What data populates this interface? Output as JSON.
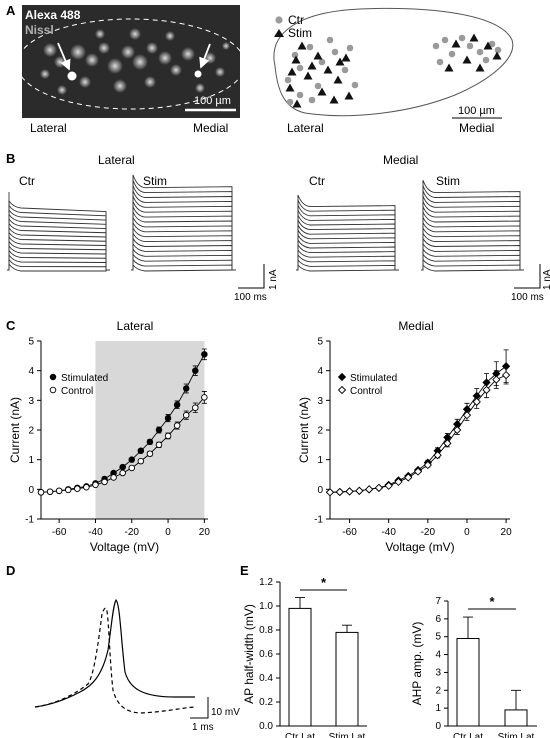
{
  "panels": {
    "A": {
      "label": "A",
      "micrograph": {
        "stain1": "Alexa 488",
        "stain2": "Nissl",
        "scale": "100 µm",
        "lateral": "Lateral",
        "medial": "Medial"
      },
      "map": {
        "legend_ctr": "Ctr",
        "legend_stim": "Stim",
        "scale": "100 µm",
        "lateral": "Lateral",
        "medial": "Medial",
        "colors": {
          "ctr": "#9a9a9a",
          "stim": "#111111"
        }
      }
    },
    "B": {
      "label": "B",
      "lateral_title": "Lateral",
      "medial_title": "Medial",
      "lateral_ctr": "Ctr",
      "lateral_stim": "Stim",
      "medial_ctr": "Ctr",
      "medial_stim": "Stim",
      "scale_current": "1 nA",
      "scale_time": "100 ms"
    },
    "C": {
      "label": "C"
    },
    "D": {
      "label": "D",
      "scale_voltage": "10 mV",
      "scale_time": "1 ms"
    },
    "E": {
      "label": "E"
    }
  },
  "chart_data": [
    {
      "id": "C-lateral",
      "type": "line",
      "title": "Lateral",
      "xlabel": "Voltage (mV)",
      "ylabel": "Current (nA)",
      "xlim": [
        -70,
        22
      ],
      "ylim": [
        -1,
        5
      ],
      "xticks": [
        -60,
        -40,
        -20,
        0,
        20
      ],
      "yticks": [
        -1,
        0,
        1,
        2,
        3,
        4,
        5
      ],
      "shaded_region": [
        -40,
        20
      ],
      "x": [
        -70,
        -65,
        -60,
        -55,
        -50,
        -45,
        -40,
        -35,
        -30,
        -25,
        -20,
        -15,
        -10,
        -5,
        0,
        5,
        10,
        15,
        20
      ],
      "series": [
        {
          "name": "Stimulated",
          "marker": "filled-circle",
          "values": [
            -0.1,
            -0.08,
            -0.05,
            0.0,
            0.05,
            0.1,
            0.2,
            0.35,
            0.55,
            0.75,
            1.0,
            1.3,
            1.6,
            2.0,
            2.4,
            2.85,
            3.4,
            4.0,
            4.55
          ],
          "errors": [
            0,
            0,
            0,
            0,
            0,
            0,
            0,
            0,
            0,
            0,
            0.05,
            0.06,
            0.08,
            0.1,
            0.12,
            0.13,
            0.15,
            0.16,
            0.18
          ]
        },
        {
          "name": "Control",
          "marker": "open-circle",
          "values": [
            -0.1,
            -0.08,
            -0.05,
            -0.02,
            0.02,
            0.07,
            0.15,
            0.25,
            0.4,
            0.55,
            0.72,
            0.95,
            1.2,
            1.5,
            1.8,
            2.15,
            2.5,
            2.75,
            3.1
          ],
          "errors": [
            0,
            0,
            0,
            0,
            0,
            0,
            0,
            0,
            0,
            0,
            0.05,
            0.05,
            0.07,
            0.09,
            0.1,
            0.12,
            0.14,
            0.16,
            0.2
          ]
        }
      ]
    },
    {
      "id": "C-medial",
      "type": "line",
      "title": "Medial",
      "xlabel": "Voltage (mV)",
      "ylabel": "Current (nA)",
      "xlim": [
        -70,
        22
      ],
      "ylim": [
        -1,
        5
      ],
      "xticks": [
        -60,
        -40,
        -20,
        0,
        20
      ],
      "yticks": [
        -1,
        0,
        1,
        2,
        3,
        4,
        5
      ],
      "x": [
        -70,
        -65,
        -60,
        -55,
        -50,
        -45,
        -40,
        -35,
        -30,
        -25,
        -20,
        -15,
        -10,
        -5,
        0,
        5,
        10,
        15,
        20
      ],
      "series": [
        {
          "name": "Stimulated",
          "marker": "filled-diamond",
          "values": [
            -0.1,
            -0.09,
            -0.07,
            -0.05,
            0.0,
            0.05,
            0.15,
            0.3,
            0.45,
            0.65,
            0.9,
            1.3,
            1.75,
            2.2,
            2.7,
            3.15,
            3.6,
            3.9,
            4.15
          ],
          "errors": [
            0,
            0,
            0,
            0,
            0,
            0,
            0,
            0,
            0,
            0,
            0.08,
            0.1,
            0.13,
            0.16,
            0.2,
            0.25,
            0.3,
            0.4,
            0.55
          ]
        },
        {
          "name": "Control",
          "marker": "open-diamond",
          "values": [
            -0.1,
            -0.09,
            -0.07,
            -0.05,
            0.0,
            0.05,
            0.12,
            0.25,
            0.4,
            0.6,
            0.82,
            1.15,
            1.55,
            2.0,
            2.5,
            2.95,
            3.35,
            3.7,
            3.85
          ],
          "errors": [
            0,
            0,
            0,
            0,
            0,
            0,
            0,
            0,
            0,
            0,
            0.07,
            0.09,
            0.12,
            0.15,
            0.18,
            0.22,
            0.26,
            0.3,
            0.3
          ]
        }
      ]
    },
    {
      "id": "E-halfwidth",
      "type": "bar",
      "ylabel": "AP half-width (mV)",
      "categories": [
        "Ctr Lat",
        "Stim Lat"
      ],
      "values": [
        0.98,
        0.78
      ],
      "errors": [
        0.09,
        0.06
      ],
      "ylim": [
        0,
        1.2
      ],
      "yticks": [
        "0.0",
        "0.2",
        "0.4",
        "0.6",
        "0.8",
        "1.0",
        "1.2"
      ],
      "significance": "*"
    },
    {
      "id": "E-ahp",
      "type": "bar",
      "ylabel": "AHP amp. (mV)",
      "categories": [
        "Ctr Lat",
        "Stim Lat"
      ],
      "values": [
        4.9,
        0.9
      ],
      "errors": [
        1.2,
        1.1
      ],
      "ylim": [
        0,
        7
      ],
      "yticks": [
        "0",
        "1",
        "2",
        "3",
        "4",
        "5",
        "6",
        "7"
      ],
      "significance": "*"
    }
  ]
}
